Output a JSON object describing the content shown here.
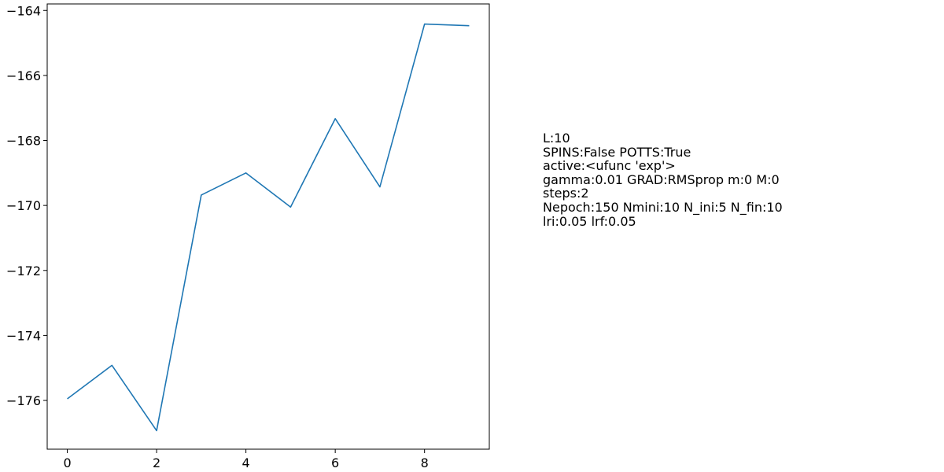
{
  "chart_data": {
    "type": "line",
    "x": [
      0,
      1,
      2,
      3,
      4,
      5,
      6,
      7,
      8,
      9
    ],
    "series": [
      {
        "values": [
          -175.95,
          -174.92,
          -176.93,
          -169.68,
          -169.0,
          -170.05,
          -167.33,
          -169.43,
          -164.42,
          -164.47
        ],
        "color": "#1f77b4"
      }
    ],
    "xlim": [
      -0.45,
      9.45
    ],
    "ylim": [
      -177.5,
      -163.8
    ],
    "xticks": [
      0,
      2,
      4,
      6,
      8
    ],
    "yticks": [
      -176,
      -174,
      -172,
      -170,
      -168,
      -166,
      -164
    ],
    "xtick_labels": [
      "0",
      "2",
      "4",
      "6",
      "8"
    ],
    "ytick_labels": [
      "−176",
      "−174",
      "−172",
      "−170",
      "−168",
      "−166",
      "−164"
    ],
    "title": "",
    "xlabel": "",
    "ylabel": "",
    "grid": false,
    "legend": "none"
  },
  "annotation": {
    "lines": [
      "L:10",
      "SPINS:False POTTS:True",
      "active:<ufunc 'exp'>",
      "gamma:0.01 GRAD:RMSprop m:0 M:0",
      "steps:2",
      "Nepoch:150 Nmini:10 N_ini:5 N_fin:10",
      "lri:0.05 lrf:0.05"
    ]
  }
}
